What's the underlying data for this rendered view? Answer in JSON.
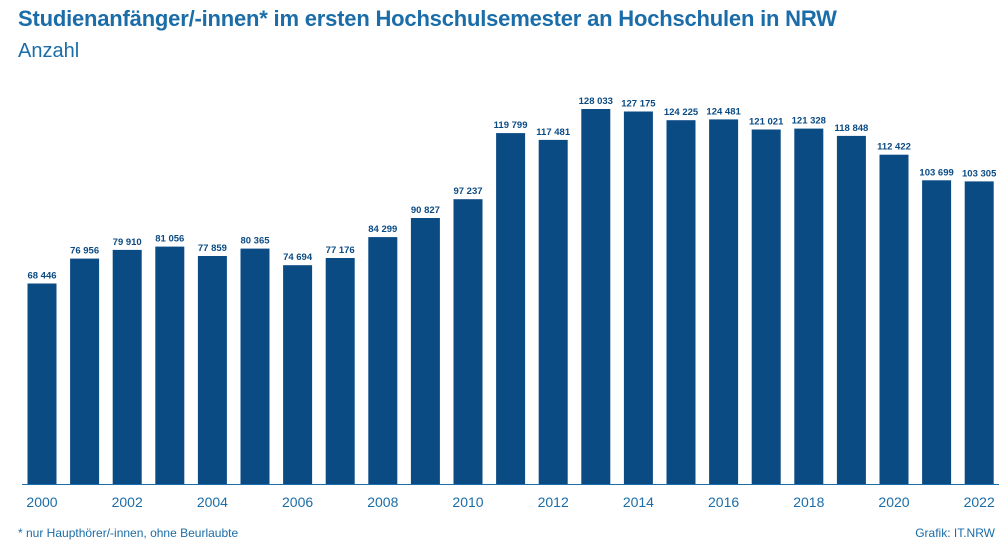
{
  "header": {
    "title": "Studienanfänger/-innen* im ersten Hochschulsemester an Hochschulen in NRW",
    "subtitle": "Anzahl"
  },
  "footer": {
    "footnote": "*  nur Haupthörer/-innen, ohne Beurlaubte",
    "source": "Grafik: IT.NRW"
  },
  "colors": {
    "bar": "#0b4b84",
    "axis": "#1a6da8",
    "label": "#0b4b84"
  },
  "chart_data": {
    "type": "bar",
    "title": "Studienanfänger/-innen* im ersten Hochschulsemester an Hochschulen in NRW",
    "subtitle": "Anzahl",
    "categories": [
      "2000",
      "2001",
      "2002",
      "2003",
      "2004",
      "2005",
      "2006",
      "2007",
      "2008",
      "2009",
      "2010",
      "2011",
      "2012",
      "2013",
      "2014",
      "2015",
      "2016",
      "2017",
      "2018",
      "2019",
      "2020",
      "2021",
      "2022"
    ],
    "values": [
      68446,
      76956,
      79910,
      81056,
      77859,
      80365,
      74694,
      77176,
      84299,
      90827,
      97237,
      119799,
      117481,
      128033,
      127175,
      124225,
      124481,
      121021,
      121328,
      118848,
      112422,
      103699,
      103305
    ],
    "value_labels": [
      "68 446",
      "76 956",
      "79 910",
      "81 056",
      "77 859",
      "80 365",
      "74 694",
      "77 176",
      "84 299",
      "90 827",
      "97 237",
      "119 799",
      "117 481",
      "128 033",
      "127 175",
      "124 225",
      "124 481",
      "121 021",
      "121 328",
      "118 848",
      "112 422",
      "103 699",
      "103 305"
    ],
    "x_tick_labels": [
      "2000",
      "",
      "2002",
      "",
      "2004",
      "",
      "2006",
      "",
      "2008",
      "",
      "2010",
      "",
      "2012",
      "",
      "2014",
      "",
      "2016",
      "",
      "2018",
      "",
      "2020",
      "",
      "2022"
    ],
    "ylim": [
      0,
      128033
    ],
    "grid": false,
    "legend": "none"
  }
}
